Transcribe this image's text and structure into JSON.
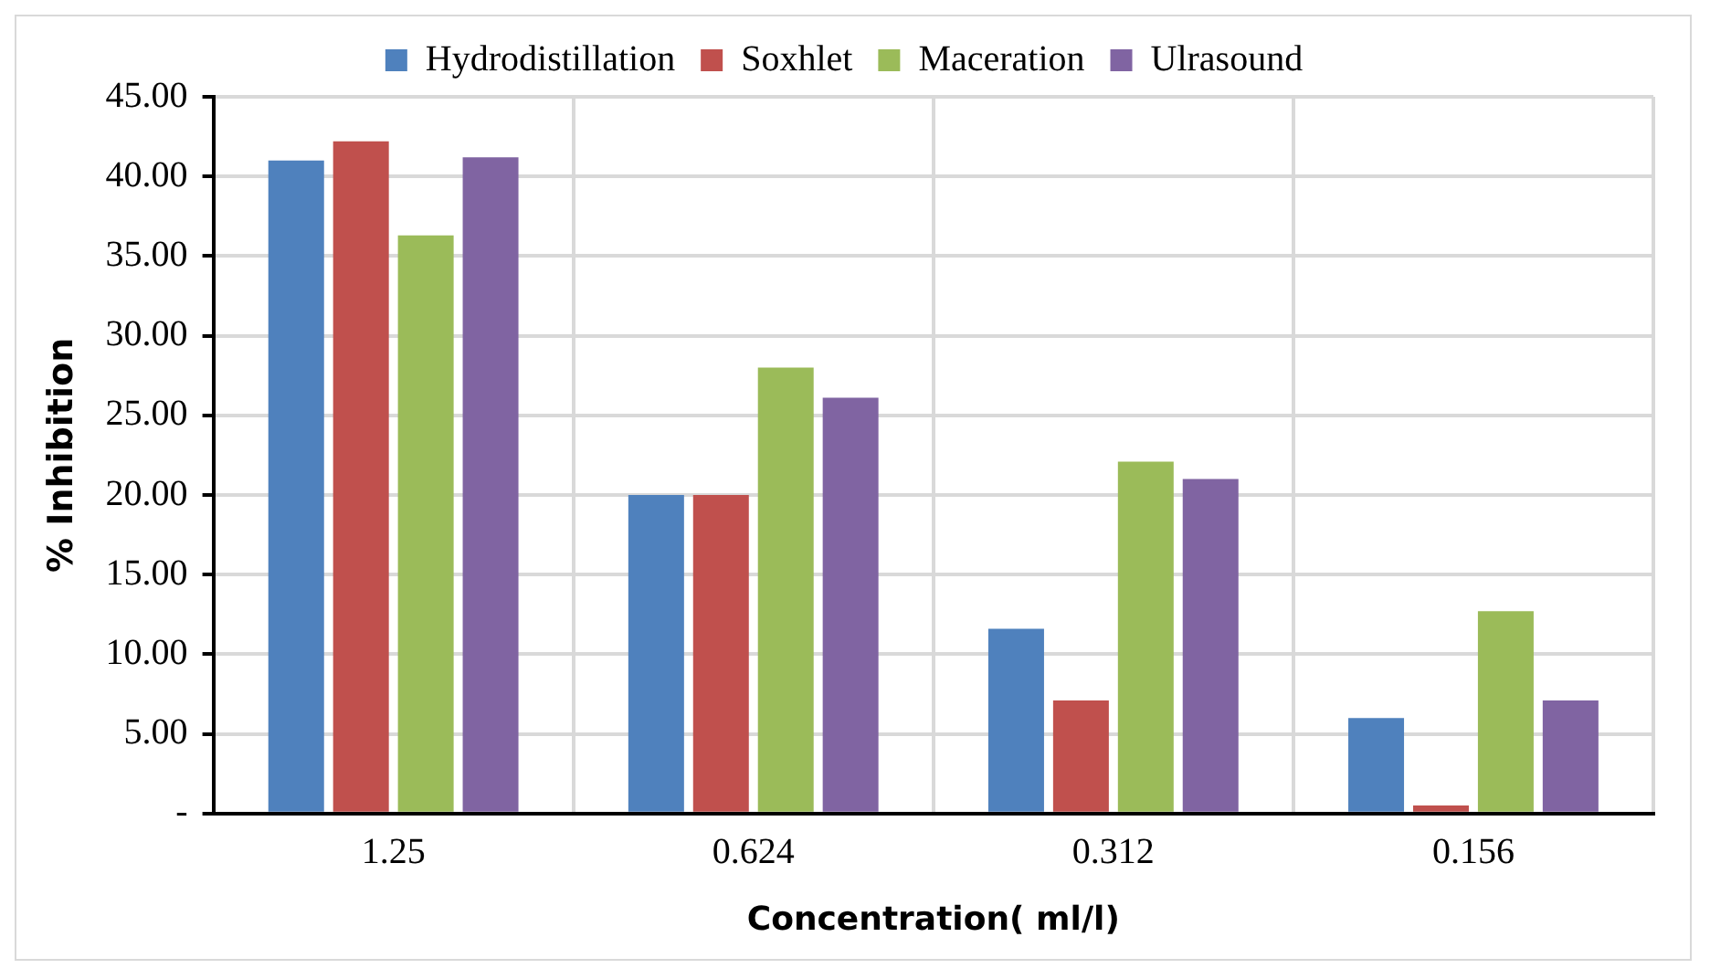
{
  "chart_data": {
    "type": "bar",
    "xlabel": "Concentration( ml/l)",
    "ylabel": "% Inhibition",
    "categories": [
      "1.25",
      "0.624",
      "0.312",
      "0.156"
    ],
    "series": [
      {
        "name": "Hydrodistillation",
        "color": "#4f81bd",
        "values": [
          41.0,
          20.0,
          11.6,
          6.0
        ]
      },
      {
        "name": "Soxhlet",
        "color": "#c0504d",
        "values": [
          42.2,
          20.0,
          7.1,
          0.5
        ]
      },
      {
        "name": "Maceration",
        "color": "#9bbb59",
        "values": [
          36.3,
          28.0,
          22.1,
          12.7
        ]
      },
      {
        "name": "Ulrasound",
        "color": "#8064a2",
        "values": [
          41.2,
          26.1,
          21.0,
          7.1
        ]
      }
    ],
    "ylim": [
      0,
      45
    ],
    "yticks": [
      {
        "value": 0,
        "label": "-"
      },
      {
        "value": 5,
        "label": "5.00"
      },
      {
        "value": 10,
        "label": "10.00"
      },
      {
        "value": 15,
        "label": "15.00"
      },
      {
        "value": 20,
        "label": "20.00"
      },
      {
        "value": 25,
        "label": "25.00"
      },
      {
        "value": 30,
        "label": "30.00"
      },
      {
        "value": 35,
        "label": "35.00"
      },
      {
        "value": 40,
        "label": "40.00"
      },
      {
        "value": 45,
        "label": "45.00"
      }
    ],
    "grid": true,
    "legend": "top"
  }
}
